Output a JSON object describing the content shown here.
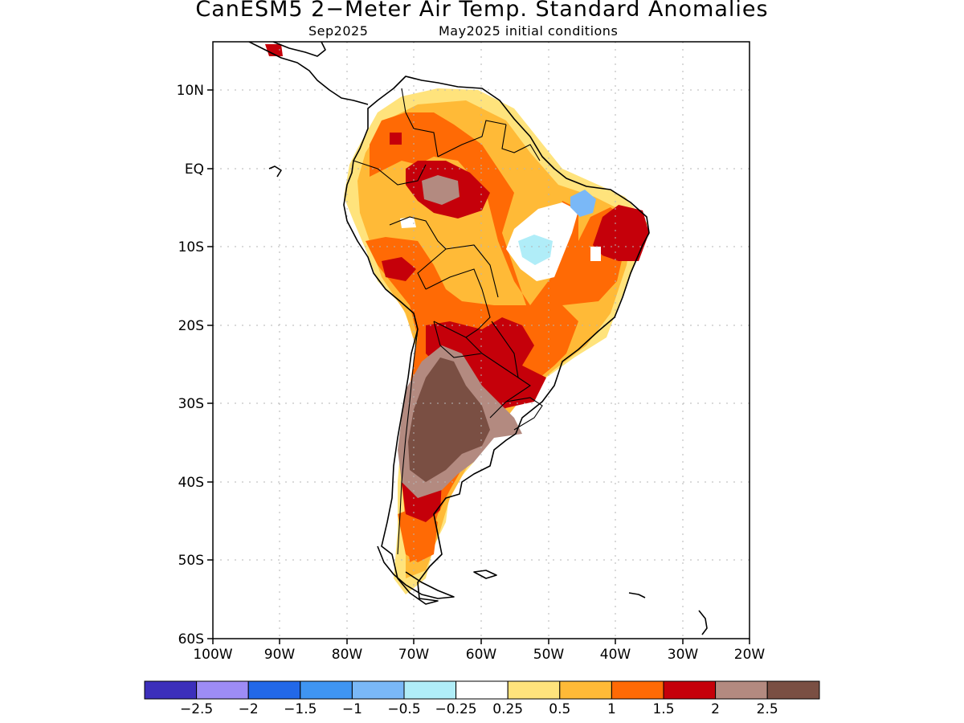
{
  "title": "CanESM5 2−Meter Air Temp. Standard Anomalies",
  "subtitle_left": "Sep2025",
  "subtitle_right": "May2025 initial conditions",
  "lat_ticks": [
    "10N",
    "EQ",
    "10S",
    "20S",
    "30S",
    "40S",
    "50S",
    "60S"
  ],
  "lon_ticks": [
    "100W",
    "90W",
    "80W",
    "70W",
    "60W",
    "50W",
    "40W",
    "30W",
    "20W"
  ],
  "map_extent": {
    "lon": [
      -100,
      -20
    ],
    "lat": [
      -60,
      16
    ]
  },
  "colorbar": {
    "colors": [
      "#3c2fbb",
      "#9d8cf5",
      "#2268e8",
      "#3f95f2",
      "#7ab8f7",
      "#b0edf8",
      "#ffffff",
      "#ffe37c",
      "#ffba37",
      "#ff6a05",
      "#c5000a",
      "#b38a80",
      "#7a4f43"
    ],
    "labels": [
      "−2.5",
      "−2",
      "−1.5",
      "−1",
      "−0.5",
      "−0.25",
      "0.25",
      "0.5",
      "1",
      "1.5",
      "2",
      "2.5"
    ]
  }
}
